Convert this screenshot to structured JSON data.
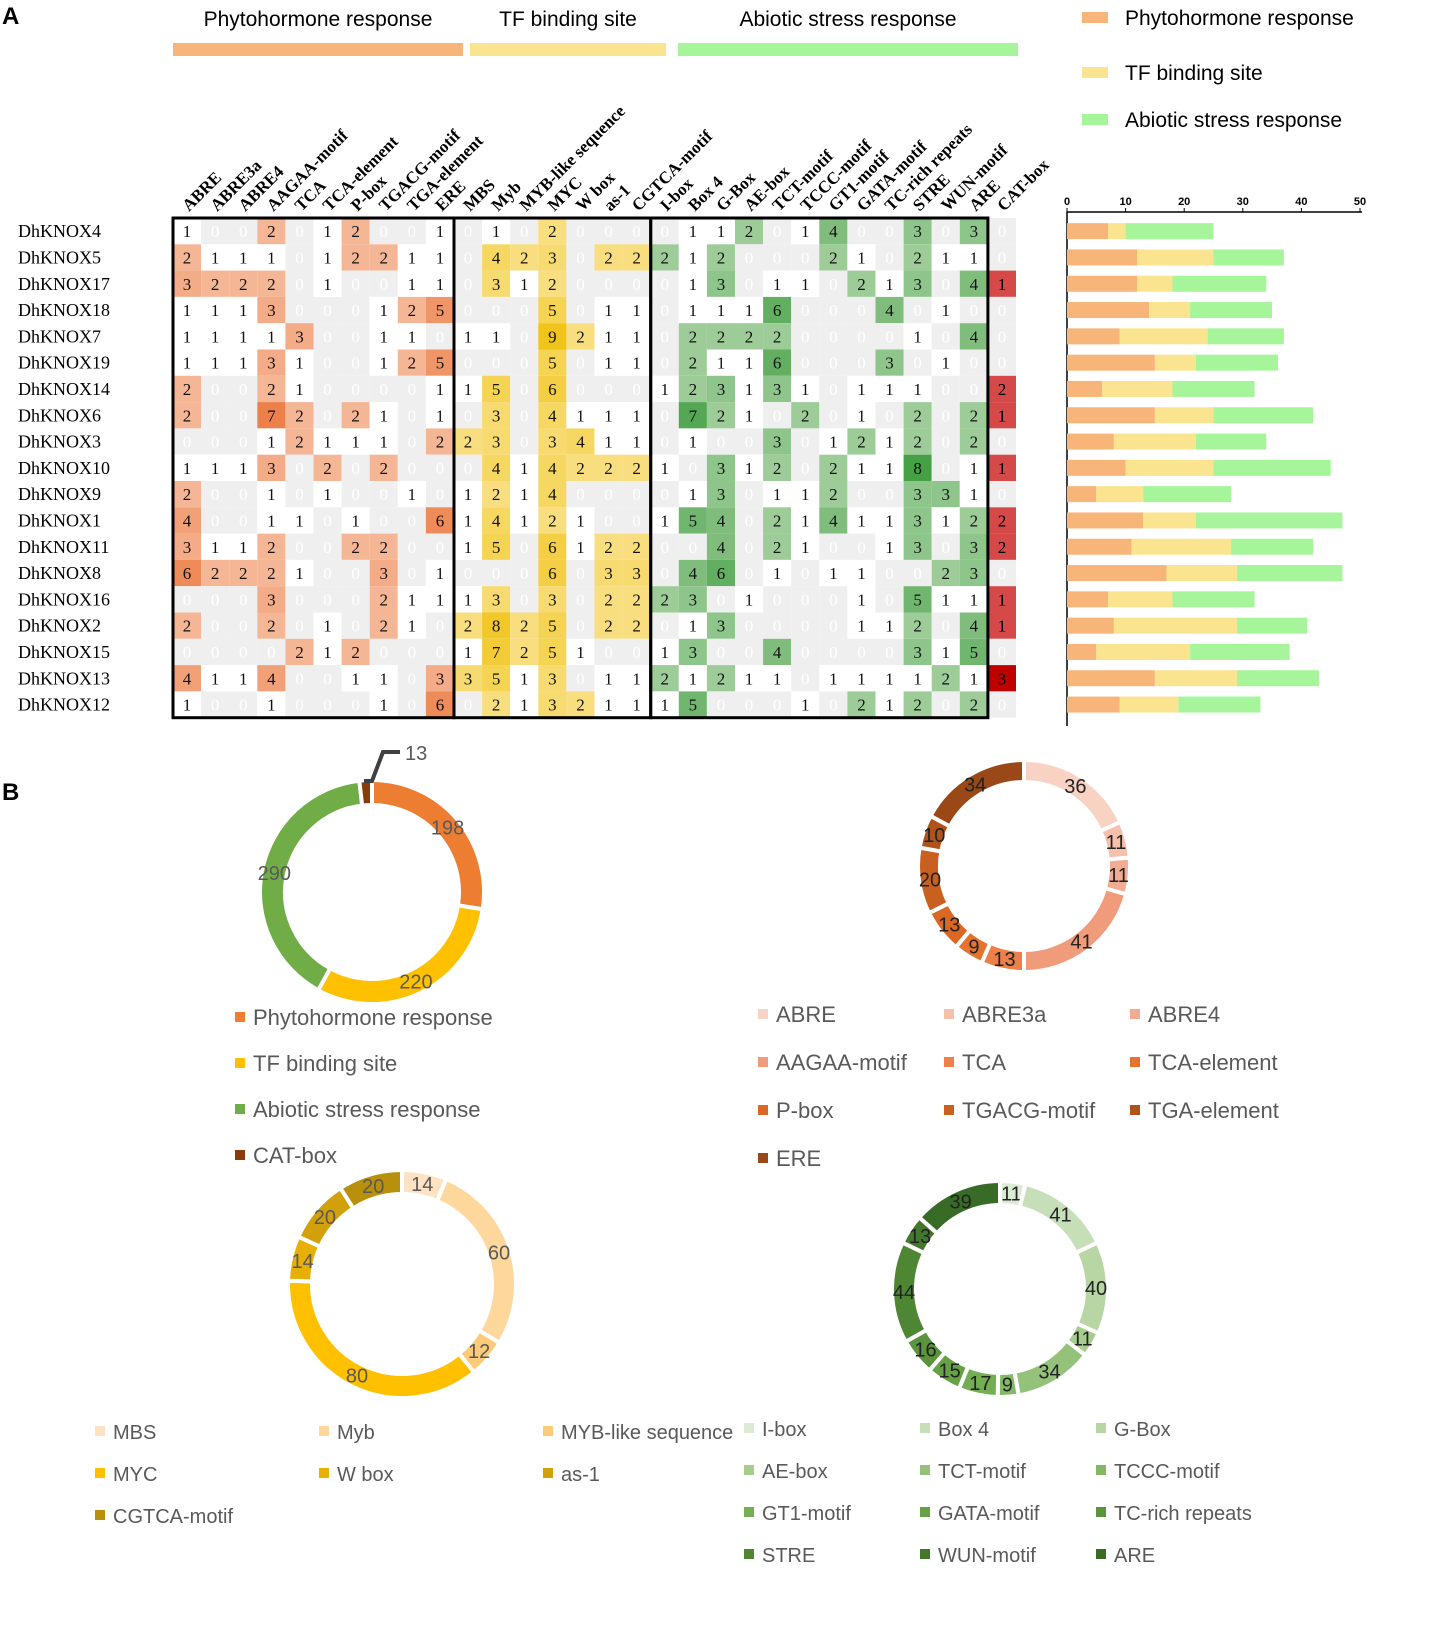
{
  "panel_a_label": "A",
  "panel_b_label": "B",
  "category_colors": {
    "Phytohormone response": "#F8B57A",
    "TF binding site": "#FBE48F",
    "Abiotic stress response": "#A6F59A",
    "CAT-box": "#D54A49"
  },
  "chart_data": [
    {
      "type": "heatmap",
      "title": "",
      "group_headers": [
        "Phytohormone response",
        "TF binding site",
        "Abiotic stress response"
      ],
      "genes": [
        "DhKNOX4",
        "DhKNOX5",
        "DhKNOX17",
        "DhKNOX18",
        "DhKNOX7",
        "DhKNOX19",
        "DhKNOX14",
        "DhKNOX6",
        "DhKNOX3",
        "DhKNOX10",
        "DhKNOX9",
        "DhKNOX1",
        "DhKNOX11",
        "DhKNOX8",
        "DhKNOX16",
        "DhKNOX2",
        "DhKNOX15",
        "DhKNOX13",
        "DhKNOX12"
      ],
      "elements": [
        "ABRE",
        "ABRE3a",
        "ABRE4",
        "AAGAA-motif",
        "TCA",
        "TCA-element",
        "P-box",
        "TGACG-motif",
        "TGA-element",
        "ERE",
        "MBS",
        "Myb",
        "MYB-like sequence",
        "MYC",
        "W box",
        "as-1",
        "CGTCA-motif",
        "I-box",
        "Box 4",
        "G-Box",
        "AE-box",
        "TCT-motif",
        "TCCC-motif",
        "GT1-motif",
        "GATA-motif",
        "TC-rich repeats",
        "STRE",
        "WUN-motif",
        "ARE",
        "CAT-box"
      ],
      "element_groups": [
        0,
        0,
        0,
        0,
        0,
        0,
        0,
        0,
        0,
        0,
        1,
        1,
        1,
        1,
        1,
        1,
        1,
        2,
        2,
        2,
        2,
        2,
        2,
        2,
        2,
        2,
        2,
        2,
        2,
        3
      ],
      "values": [
        [
          1,
          0,
          0,
          2,
          0,
          1,
          2,
          0,
          0,
          1,
          0,
          1,
          0,
          2,
          0,
          0,
          0,
          0,
          1,
          1,
          2,
          0,
          1,
          4,
          0,
          0,
          3,
          0,
          3,
          0
        ],
        [
          2,
          1,
          1,
          1,
          0,
          1,
          2,
          2,
          1,
          1,
          0,
          4,
          2,
          3,
          0,
          2,
          2,
          2,
          1,
          2,
          0,
          0,
          0,
          2,
          1,
          0,
          2,
          1,
          1,
          0
        ],
        [
          3,
          2,
          2,
          2,
          0,
          1,
          0,
          0,
          1,
          1,
          0,
          3,
          1,
          2,
          0,
          0,
          0,
          0,
          1,
          3,
          0,
          1,
          1,
          0,
          2,
          1,
          3,
          0,
          4,
          1
        ],
        [
          1,
          1,
          1,
          3,
          0,
          0,
          0,
          1,
          2,
          5,
          0,
          0,
          0,
          5,
          0,
          1,
          1,
          0,
          1,
          1,
          1,
          6,
          0,
          0,
          0,
          4,
          0,
          1,
          0,
          0
        ],
        [
          1,
          1,
          1,
          1,
          3,
          0,
          0,
          1,
          1,
          0,
          1,
          1,
          0,
          9,
          2,
          1,
          1,
          0,
          2,
          2,
          2,
          2,
          0,
          0,
          0,
          0,
          1,
          0,
          4,
          0
        ],
        [
          1,
          1,
          1,
          3,
          1,
          0,
          0,
          1,
          2,
          5,
          0,
          0,
          0,
          5,
          0,
          1,
          1,
          0,
          2,
          1,
          1,
          6,
          0,
          0,
          0,
          3,
          0,
          1,
          0,
          0
        ],
        [
          2,
          0,
          0,
          2,
          1,
          0,
          0,
          0,
          0,
          1,
          1,
          5,
          0,
          6,
          0,
          0,
          0,
          1,
          2,
          3,
          1,
          3,
          1,
          0,
          1,
          1,
          1,
          0,
          0,
          2
        ],
        [
          2,
          0,
          0,
          7,
          2,
          0,
          2,
          1,
          0,
          1,
          0,
          3,
          0,
          4,
          1,
          1,
          1,
          0,
          7,
          2,
          1,
          0,
          2,
          0,
          1,
          0,
          2,
          0,
          2,
          1
        ],
        [
          0,
          0,
          0,
          1,
          2,
          1,
          1,
          1,
          0,
          2,
          2,
          3,
          0,
          3,
          4,
          1,
          1,
          0,
          1,
          0,
          0,
          3,
          0,
          1,
          2,
          1,
          2,
          0,
          2,
          0
        ],
        [
          1,
          1,
          1,
          3,
          0,
          2,
          0,
          2,
          0,
          0,
          0,
          4,
          1,
          4,
          2,
          2,
          2,
          1,
          0,
          3,
          1,
          2,
          0,
          2,
          1,
          1,
          8,
          0,
          1,
          1
        ],
        [
          2,
          0,
          0,
          1,
          0,
          1,
          0,
          0,
          1,
          0,
          1,
          2,
          1,
          4,
          0,
          0,
          0,
          0,
          1,
          3,
          0,
          1,
          1,
          2,
          0,
          0,
          3,
          3,
          1,
          0
        ],
        [
          4,
          0,
          0,
          1,
          1,
          0,
          1,
          0,
          0,
          6,
          1,
          4,
          1,
          2,
          1,
          0,
          0,
          1,
          5,
          4,
          0,
          2,
          1,
          4,
          1,
          1,
          3,
          1,
          2,
          2
        ],
        [
          3,
          1,
          1,
          2,
          0,
          0,
          2,
          2,
          0,
          0,
          1,
          5,
          0,
          6,
          1,
          2,
          2,
          0,
          0,
          4,
          0,
          2,
          1,
          0,
          0,
          1,
          3,
          0,
          3,
          2
        ],
        [
          6,
          2,
          2,
          2,
          1,
          0,
          0,
          3,
          0,
          1,
          0,
          0,
          0,
          6,
          0,
          3,
          3,
          0,
          4,
          6,
          0,
          1,
          0,
          1,
          1,
          0,
          0,
          2,
          3,
          0
        ],
        [
          0,
          0,
          0,
          3,
          0,
          0,
          0,
          2,
          1,
          1,
          1,
          3,
          0,
          3,
          0,
          2,
          2,
          2,
          3,
          0,
          1,
          0,
          0,
          0,
          1,
          0,
          5,
          1,
          1,
          1
        ],
        [
          2,
          0,
          0,
          2,
          0,
          1,
          0,
          2,
          1,
          0,
          2,
          8,
          2,
          5,
          0,
          2,
          2,
          0,
          1,
          3,
          0,
          0,
          0,
          0,
          1,
          1,
          2,
          0,
          4,
          1
        ],
        [
          0,
          0,
          0,
          0,
          2,
          1,
          2,
          0,
          0,
          0,
          1,
          7,
          2,
          5,
          1,
          0,
          0,
          1,
          3,
          0,
          0,
          4,
          0,
          0,
          0,
          0,
          3,
          1,
          5,
          0
        ],
        [
          4,
          1,
          1,
          4,
          0,
          0,
          1,
          1,
          0,
          3,
          3,
          5,
          1,
          3,
          0,
          1,
          1,
          2,
          1,
          2,
          1,
          1,
          0,
          1,
          1,
          1,
          1,
          2,
          1,
          3
        ],
        [
          1,
          0,
          0,
          1,
          0,
          0,
          0,
          1,
          0,
          6,
          0,
          2,
          1,
          3,
          2,
          1,
          1,
          1,
          5,
          0,
          0,
          0,
          1,
          0,
          2,
          1,
          2,
          0,
          2,
          0
        ]
      ]
    },
    {
      "type": "bar",
      "stacked": true,
      "orientation": "horizontal",
      "categories": [
        "DhKNOX4",
        "DhKNOX5",
        "DhKNOX17",
        "DhKNOX18",
        "DhKNOX7",
        "DhKNOX19",
        "DhKNOX14",
        "DhKNOX6",
        "DhKNOX3",
        "DhKNOX10",
        "DhKNOX9",
        "DhKNOX1",
        "DhKNOX11",
        "DhKNOX8",
        "DhKNOX16",
        "DhKNOX2",
        "DhKNOX15",
        "DhKNOX13",
        "DhKNOX12"
      ],
      "series": [
        {
          "name": "Phytohormone response",
          "values": [
            7,
            12,
            12,
            14,
            9,
            15,
            6,
            15,
            8,
            10,
            5,
            13,
            11,
            17,
            7,
            8,
            5,
            15,
            9
          ]
        },
        {
          "name": "TF binding site",
          "values": [
            3,
            13,
            6,
            7,
            15,
            7,
            12,
            10,
            14,
            15,
            8,
            9,
            17,
            12,
            11,
            21,
            16,
            14,
            10
          ]
        },
        {
          "name": "Abiotic stress response",
          "values": [
            15,
            12,
            16,
            14,
            13,
            14,
            14,
            17,
            12,
            20,
            15,
            25,
            14,
            18,
            14,
            12,
            17,
            14,
            14
          ]
        }
      ],
      "xlim": [
        0,
        50
      ],
      "xticks": [
        "0",
        "10",
        "20",
        "30",
        "40",
        "50"
      ],
      "legend": [
        "Phytohormone response",
        "TF binding site",
        "Abiotic stress response"
      ],
      "legend_position": "top-right"
    },
    {
      "type": "pie",
      "donut": true,
      "labels": [
        "Phytohormone response",
        "TF binding site",
        "Abiotic stress response",
        "CAT-box"
      ],
      "values": [
        198,
        220,
        290,
        13
      ],
      "value_labels": [
        "198",
        "220",
        "290",
        "13"
      ],
      "colors": [
        "#ED7D31",
        "#FFC000",
        "#70AD47",
        "#8B3A0E"
      ],
      "start_index": 0
    },
    {
      "type": "pie",
      "donut": true,
      "labels": [
        "ABRE",
        "ABRE3a",
        "ABRE4",
        "AAGAA-motif",
        "TCA",
        "TCA-element",
        "P-box",
        "TGACG-motif",
        "TGA-element",
        "ERE"
      ],
      "values": [
        36,
        11,
        11,
        41,
        13,
        9,
        13,
        20,
        10,
        34
      ],
      "value_labels": [
        "36",
        "11",
        "11",
        "41",
        "13",
        "9",
        "13",
        "20",
        "10",
        "34"
      ],
      "colors": [
        "#F8D2C2",
        "#F6C0AD",
        "#F3AC94",
        "#F09B7A",
        "#ED7F4A",
        "#E5732D",
        "#DA6724",
        "#C8601F",
        "#B0531B",
        "#9A4817"
      ]
    },
    {
      "type": "pie",
      "donut": true,
      "labels": [
        "MBS",
        "Myb",
        "MYB-like sequence",
        "MYC",
        "W box",
        "as-1",
        "CGTCA-motif"
      ],
      "values": [
        14,
        60,
        12,
        80,
        14,
        20,
        20
      ],
      "value_labels": [
        "14",
        "60",
        "12",
        "80",
        "14",
        "20",
        "20"
      ],
      "colors": [
        "#FDE3C4",
        "#FDD79C",
        "#FCCB7A",
        "#FFC000",
        "#E8B007",
        "#D1A00B",
        "#B8900C"
      ]
    },
    {
      "type": "pie",
      "donut": true,
      "labels": [
        "I-box",
        "Box 4",
        "G-Box",
        "AE-box",
        "TCT-motif",
        "TCCC-motif",
        "GT1-motif",
        "GATA-motif",
        "TC-rich repeats",
        "STRE",
        "WUN-motif",
        "ARE"
      ],
      "values": [
        11,
        41,
        40,
        11,
        34,
        9,
        17,
        15,
        16,
        44,
        13,
        39
      ],
      "value_labels": [
        "11",
        "41",
        "40",
        "11",
        "34",
        "9",
        "17",
        "15",
        "16",
        "44",
        "13",
        "39"
      ],
      "colors": [
        "#DCEBD3",
        "#C7DFB9",
        "#B7D6A3",
        "#A6CC8E",
        "#95C27A",
        "#84B866",
        "#73AE52",
        "#66A244",
        "#5A943C",
        "#4E8634",
        "#42782C",
        "#376B26"
      ]
    }
  ]
}
